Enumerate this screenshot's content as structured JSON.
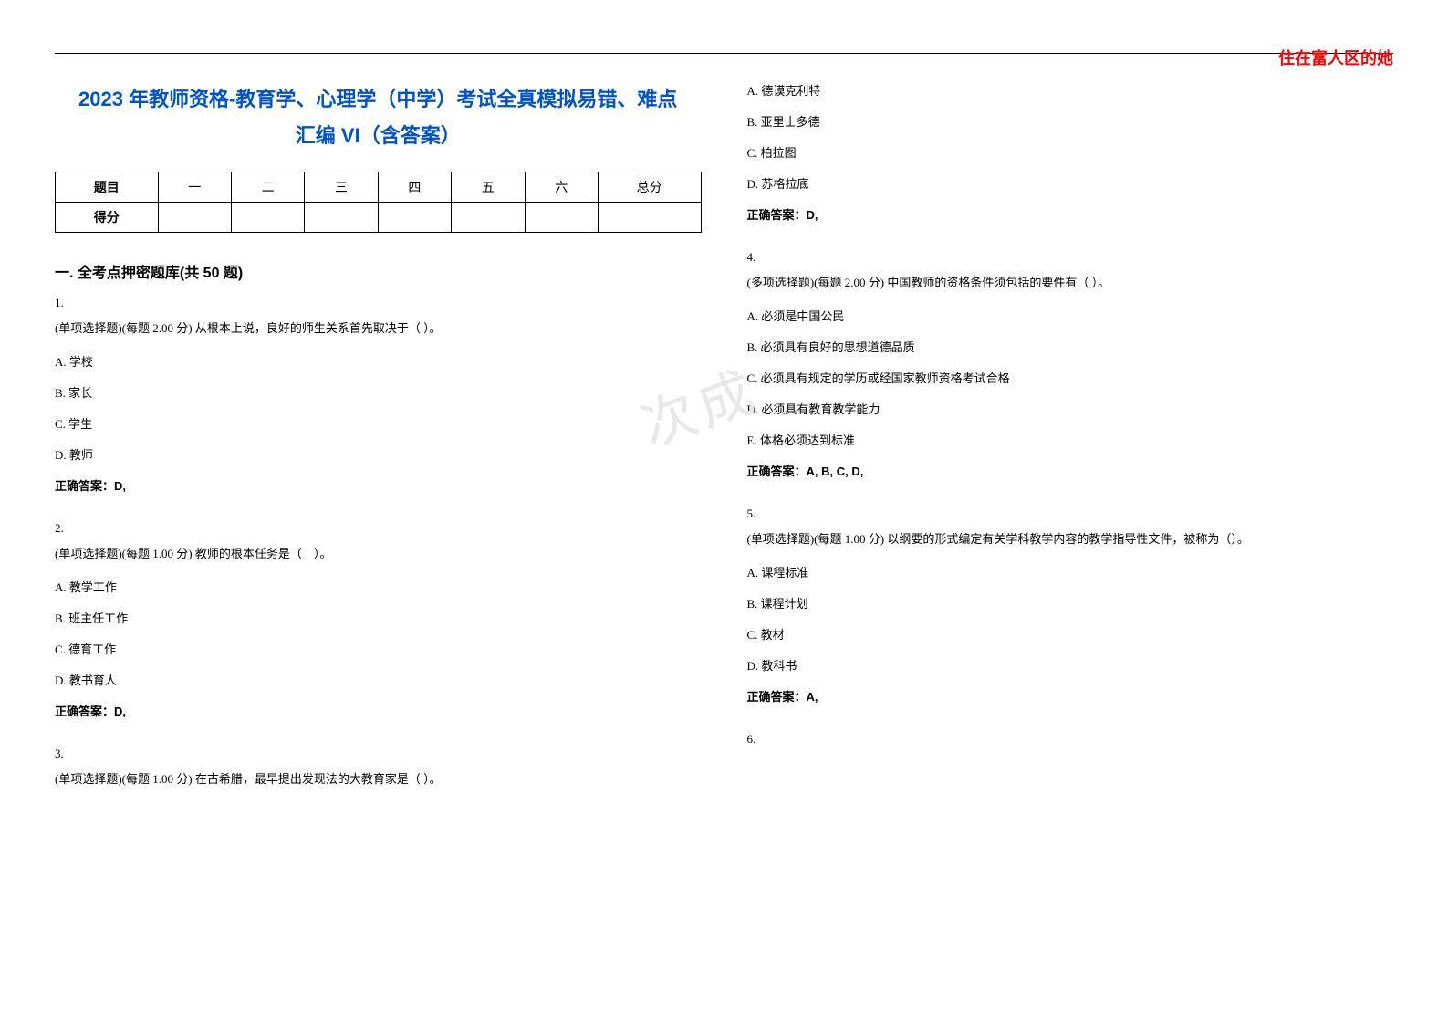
{
  "watermark_top": "住在富人区的她",
  "watermark_center": "次成",
  "title_line1": "2023 年教师资格-教育学、心理学（中学）考试全真模拟易错、难点",
  "title_line2": "汇编 VI（含答案）",
  "score_table": {
    "headers": [
      "题目",
      "一",
      "二",
      "三",
      "四",
      "五",
      "六",
      "总分"
    ],
    "row2_label": "得分"
  },
  "section_header": "一. 全考点押密题库(共 50 题)",
  "left_column": {
    "q1": {
      "num": "1.",
      "text": "(单项选择题)(每题 2.00 分) 从根本上说，良好的师生关系首先取决于（ ）。",
      "options": [
        "A. 学校",
        "B. 家长",
        "C. 学生",
        "D. 教师"
      ],
      "answer": "正确答案：D,"
    },
    "q2": {
      "num": "2.",
      "text": "(单项选择题)(每题 1.00 分) 教师的根本任务是（　）。",
      "options": [
        "A. 教学工作",
        "B. 班主任工作",
        "C. 德育工作",
        "D. 教书育人"
      ],
      "answer": "正确答案：D,"
    },
    "q3": {
      "num": "3.",
      "text": "(单项选择题)(每题 1.00 分) 在古希腊，最早提出发现法的大教育家是（ ）。"
    }
  },
  "right_column": {
    "q3_continued": {
      "options": [
        "A. 德谟克利特",
        "B. 亚里士多德",
        "C. 柏拉图",
        "D. 苏格拉底"
      ],
      "answer": "正确答案：D,"
    },
    "q4": {
      "num": "4.",
      "text": "(多项选择题)(每题 2.00 分) 中国教师的资格条件须包括的要件有（ ）。",
      "options": [
        "A. 必须是中国公民",
        "B. 必须具有良好的思想道德品质",
        "C. 必须具有规定的学历或经国家教师资格考试合格",
        "D. 必须具有教育教学能力",
        "E. 体格必须达到标准"
      ],
      "answer": "正确答案：A, B, C, D,"
    },
    "q5": {
      "num": "5.",
      "text": "(单项选择题)(每题 1.00 分) 以纲要的形式编定有关学科教学内容的教学指导性文件，被称为（）。",
      "options": [
        "A. 课程标准",
        "B. 课程计划",
        "C. 教材",
        "D. 教科书"
      ],
      "answer": "正确答案：A,"
    },
    "q6": {
      "num": "6."
    }
  }
}
